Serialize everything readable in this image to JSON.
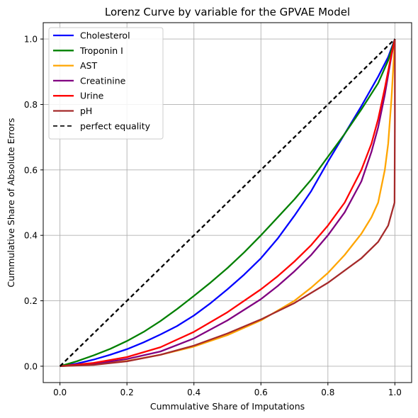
{
  "chart_data": {
    "type": "line",
    "title": "Lorenz Curve by variable for the GPVAE Model",
    "xlabel": "Cummulative Share of Imputations",
    "ylabel": "Cummulative Share of Absolute Errors",
    "xlim": [
      -0.05,
      1.05
    ],
    "ylim": [
      -0.05,
      1.05
    ],
    "xticks": [
      "0.0",
      "0.2",
      "0.4",
      "0.6",
      "0.8",
      "1.0"
    ],
    "yticks": [
      "0.0",
      "0.2",
      "0.4",
      "0.6",
      "0.8",
      "1.0"
    ],
    "xtick_values": [
      0,
      0.2,
      0.4,
      0.6,
      0.8,
      1.0
    ],
    "ytick_values": [
      0,
      0.2,
      0.4,
      0.6,
      0.8,
      1.0
    ],
    "grid": true,
    "legend_position": "top-left",
    "series": [
      {
        "name": "Cholesterol",
        "color": "#0000ff",
        "dashed": false,
        "x": [
          0,
          0.05,
          0.1,
          0.15,
          0.2,
          0.25,
          0.3,
          0.35,
          0.4,
          0.45,
          0.5,
          0.55,
          0.6,
          0.65,
          0.7,
          0.75,
          0.8,
          0.85,
          0.9,
          0.95,
          0.98,
          1.0
        ],
        "y": [
          0,
          0.008,
          0.02,
          0.035,
          0.052,
          0.073,
          0.097,
          0.123,
          0.155,
          0.193,
          0.235,
          0.28,
          0.33,
          0.39,
          0.46,
          0.535,
          0.625,
          0.71,
          0.795,
          0.885,
          0.945,
          1.0
        ]
      },
      {
        "name": "Troponin I",
        "color": "#008000",
        "dashed": false,
        "x": [
          0,
          0.05,
          0.1,
          0.15,
          0.2,
          0.25,
          0.3,
          0.35,
          0.4,
          0.45,
          0.5,
          0.55,
          0.6,
          0.65,
          0.7,
          0.75,
          0.8,
          0.85,
          0.9,
          0.95,
          0.98,
          1.0
        ],
        "y": [
          0,
          0.015,
          0.033,
          0.053,
          0.077,
          0.105,
          0.138,
          0.175,
          0.215,
          0.256,
          0.3,
          0.348,
          0.4,
          0.455,
          0.51,
          0.57,
          0.64,
          0.71,
          0.785,
          0.865,
          0.935,
          1.0
        ]
      },
      {
        "name": "AST",
        "color": "#ffa500",
        "dashed": false,
        "x": [
          0,
          0.1,
          0.2,
          0.3,
          0.4,
          0.5,
          0.6,
          0.7,
          0.75,
          0.8,
          0.85,
          0.9,
          0.93,
          0.95,
          0.97,
          0.98,
          0.99,
          1.0
        ],
        "y": [
          0,
          0.005,
          0.016,
          0.035,
          0.06,
          0.095,
          0.14,
          0.2,
          0.24,
          0.285,
          0.34,
          0.405,
          0.455,
          0.5,
          0.6,
          0.68,
          0.82,
          1.0
        ]
      },
      {
        "name": "Creatinine",
        "color": "#800080",
        "dashed": false,
        "x": [
          0,
          0.1,
          0.2,
          0.3,
          0.4,
          0.5,
          0.6,
          0.65,
          0.7,
          0.75,
          0.8,
          0.85,
          0.9,
          0.93,
          0.95,
          0.97,
          0.99,
          1.0
        ],
        "y": [
          0,
          0.007,
          0.022,
          0.045,
          0.085,
          0.14,
          0.205,
          0.245,
          0.29,
          0.34,
          0.4,
          0.47,
          0.565,
          0.655,
          0.73,
          0.83,
          0.95,
          1.0
        ]
      },
      {
        "name": "Urine",
        "color": "#ff0000",
        "dashed": false,
        "x": [
          0,
          0.1,
          0.2,
          0.3,
          0.4,
          0.5,
          0.6,
          0.65,
          0.7,
          0.75,
          0.8,
          0.85,
          0.9,
          0.93,
          0.95,
          0.97,
          0.99,
          1.0
        ],
        "y": [
          0,
          0.01,
          0.028,
          0.058,
          0.105,
          0.165,
          0.235,
          0.275,
          0.32,
          0.37,
          0.43,
          0.5,
          0.6,
          0.68,
          0.755,
          0.85,
          0.955,
          1.0
        ]
      },
      {
        "name": "pH",
        "color": "#a52a2a",
        "dashed": false,
        "x": [
          0,
          0.1,
          0.2,
          0.3,
          0.4,
          0.5,
          0.6,
          0.7,
          0.8,
          0.9,
          0.95,
          0.98,
          0.999,
          1.0,
          1.0
        ],
        "y": [
          0,
          0.004,
          0.015,
          0.035,
          0.063,
          0.1,
          0.143,
          0.193,
          0.255,
          0.33,
          0.38,
          0.43,
          0.5,
          0.75,
          1.0
        ]
      },
      {
        "name": "perfect equality",
        "color": "#000000",
        "dashed": true,
        "x": [
          0,
          1
        ],
        "y": [
          0,
          1
        ]
      }
    ]
  }
}
